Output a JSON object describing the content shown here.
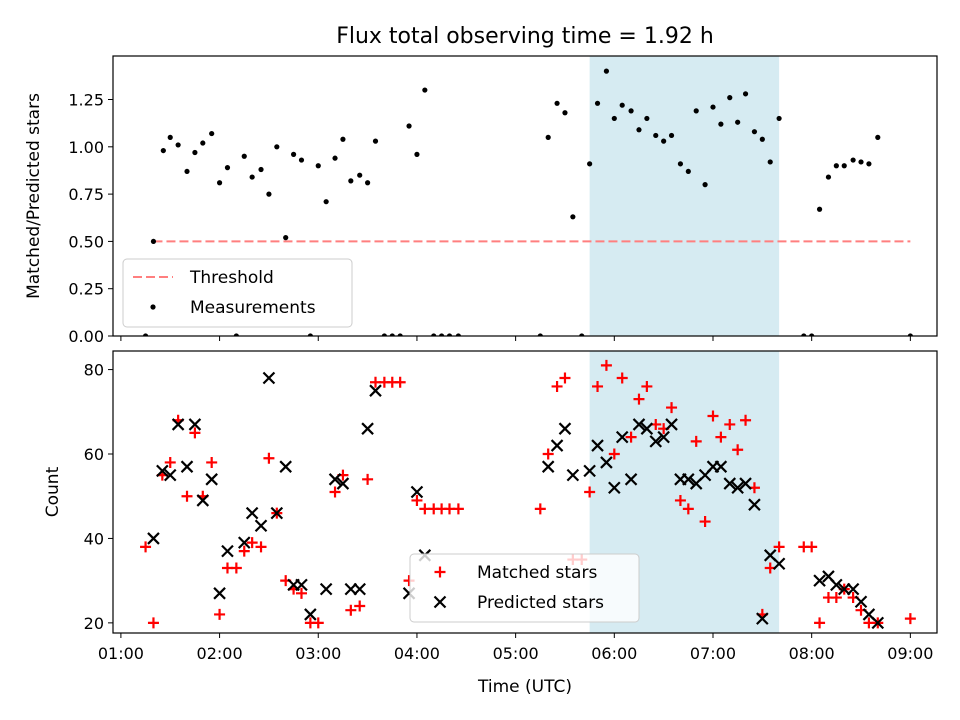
{
  "figure": {
    "title": "Flux total observing time = 1.92 h",
    "xlabel": "Time (UTC)",
    "x_ticks": [
      "01:00",
      "02:00",
      "03:00",
      "04:00",
      "05:00",
      "06:00",
      "07:00",
      "08:00",
      "09:00"
    ],
    "highlight_color": "#add8e6"
  },
  "chart_data": [
    {
      "type": "scatter",
      "ylabel": "Matched/Predicted stars",
      "x_unit": "hours UTC",
      "xlim": [
        0.92,
        9.27
      ],
      "ylim": [
        0,
        1.48
      ],
      "y_ticks": [
        "0.00",
        "0.25",
        "0.50",
        "0.75",
        "1.00",
        "1.25"
      ],
      "grid": false,
      "legend_position": "lower-left",
      "highlight_span": [
        5.75,
        7.67
      ],
      "threshold": {
        "name": "Threshold",
        "x": [
          1.33,
          9.0
        ],
        "value": 0.5,
        "color": "#ff7f7f",
        "style": "dashed"
      },
      "series": [
        {
          "name": "Measurements",
          "color": "#000000",
          "marker": "dot",
          "points": [
            [
              1.25,
              0
            ],
            [
              1.33,
              0.5
            ],
            [
              1.43,
              0.98
            ],
            [
              1.5,
              1.05
            ],
            [
              1.58,
              1.01
            ],
            [
              1.67,
              0.87
            ],
            [
              1.75,
              0.97
            ],
            [
              1.83,
              1.02
            ],
            [
              1.92,
              1.07
            ],
            [
              2.0,
              0.81
            ],
            [
              2.08,
              0.89
            ],
            [
              2.17,
              0
            ],
            [
              2.25,
              0.95
            ],
            [
              2.33,
              0.84
            ],
            [
              2.42,
              0.88
            ],
            [
              2.5,
              0.75
            ],
            [
              2.58,
              1.0
            ],
            [
              2.67,
              0.52
            ],
            [
              2.75,
              0.96
            ],
            [
              2.83,
              0.93
            ],
            [
              2.92,
              0
            ],
            [
              3.0,
              0.9
            ],
            [
              3.08,
              0.71
            ],
            [
              3.17,
              0.94
            ],
            [
              3.25,
              1.04
            ],
            [
              3.33,
              0.82
            ],
            [
              3.42,
              0.85
            ],
            [
              3.5,
              0.81
            ],
            [
              3.58,
              1.03
            ],
            [
              3.67,
              0
            ],
            [
              3.75,
              0
            ],
            [
              3.83,
              0
            ],
            [
              3.92,
              1.11
            ],
            [
              4.0,
              0.96
            ],
            [
              4.08,
              1.3
            ],
            [
              4.17,
              0
            ],
            [
              4.25,
              0
            ],
            [
              4.33,
              0
            ],
            [
              4.42,
              0
            ],
            [
              5.25,
              0
            ],
            [
              5.33,
              1.05
            ],
            [
              5.42,
              1.23
            ],
            [
              5.5,
              1.18
            ],
            [
              5.58,
              0.63
            ],
            [
              5.67,
              0
            ],
            [
              5.75,
              0.91
            ],
            [
              5.83,
              1.23
            ],
            [
              5.92,
              1.4
            ],
            [
              6.0,
              1.15
            ],
            [
              6.08,
              1.22
            ],
            [
              6.17,
              1.19
            ],
            [
              6.25,
              1.09
            ],
            [
              6.33,
              1.15
            ],
            [
              6.42,
              1.06
            ],
            [
              6.5,
              1.03
            ],
            [
              6.58,
              1.06
            ],
            [
              6.67,
              0.91
            ],
            [
              6.75,
              0.87
            ],
            [
              6.83,
              1.19
            ],
            [
              6.92,
              0.8
            ],
            [
              7.0,
              1.21
            ],
            [
              7.08,
              1.12
            ],
            [
              7.17,
              1.26
            ],
            [
              7.25,
              1.13
            ],
            [
              7.33,
              1.28
            ],
            [
              7.42,
              1.08
            ],
            [
              7.5,
              1.04
            ],
            [
              7.58,
              0.92
            ],
            [
              7.67,
              1.15
            ],
            [
              7.92,
              0
            ],
            [
              8.0,
              0
            ],
            [
              8.08,
              0.67
            ],
            [
              8.17,
              0.84
            ],
            [
              8.25,
              0.9
            ],
            [
              8.33,
              0.9
            ],
            [
              8.42,
              0.93
            ],
            [
              8.5,
              0.92
            ],
            [
              8.58,
              0.91
            ],
            [
              8.67,
              1.05
            ],
            [
              9.0,
              0
            ]
          ]
        }
      ]
    },
    {
      "type": "scatter",
      "ylabel": "Count",
      "x_unit": "hours UTC",
      "xlim": [
        0.92,
        9.27
      ],
      "ylim": [
        17.6,
        84.4
      ],
      "y_ticks": [
        "20",
        "40",
        "60",
        "80"
      ],
      "grid": false,
      "legend_position": "lower-center",
      "highlight_span": [
        5.75,
        7.67
      ],
      "series": [
        {
          "name": "Matched stars",
          "color": "#ff0000",
          "marker": "plus",
          "points": [
            [
              1.25,
              38
            ],
            [
              1.33,
              20
            ],
            [
              1.42,
              55
            ],
            [
              1.5,
              58
            ],
            [
              1.58,
              68
            ],
            [
              1.67,
              50
            ],
            [
              1.75,
              65
            ],
            [
              1.83,
              50
            ],
            [
              1.92,
              58
            ],
            [
              2.0,
              22
            ],
            [
              2.08,
              33
            ],
            [
              2.17,
              33
            ],
            [
              2.25,
              37
            ],
            [
              2.33,
              39
            ],
            [
              2.42,
              38
            ],
            [
              2.5,
              59
            ],
            [
              2.58,
              46
            ],
            [
              2.67,
              30
            ],
            [
              2.75,
              28
            ],
            [
              2.83,
              27
            ],
            [
              2.92,
              20
            ],
            [
              3.0,
              20
            ],
            [
              3.17,
              51
            ],
            [
              3.25,
              55
            ],
            [
              3.33,
              23
            ],
            [
              3.42,
              24
            ],
            [
              3.5,
              54
            ],
            [
              3.58,
              77
            ],
            [
              3.67,
              77
            ],
            [
              3.75,
              77
            ],
            [
              3.83,
              77
            ],
            [
              3.92,
              30
            ],
            [
              4.0,
              49
            ],
            [
              4.08,
              47
            ],
            [
              4.17,
              47
            ],
            [
              4.25,
              47
            ],
            [
              4.33,
              47
            ],
            [
              4.42,
              47
            ],
            [
              5.25,
              47
            ],
            [
              5.33,
              60
            ],
            [
              5.42,
              76
            ],
            [
              5.5,
              78
            ],
            [
              5.58,
              35
            ],
            [
              5.67,
              35
            ],
            [
              5.75,
              51
            ],
            [
              5.83,
              76
            ],
            [
              5.92,
              81
            ],
            [
              6.0,
              60
            ],
            [
              6.08,
              78
            ],
            [
              6.17,
              64
            ],
            [
              6.25,
              73
            ],
            [
              6.33,
              76
            ],
            [
              6.42,
              67
            ],
            [
              6.5,
              66
            ],
            [
              6.58,
              71
            ],
            [
              6.67,
              49
            ],
            [
              6.75,
              47
            ],
            [
              6.83,
              63
            ],
            [
              6.92,
              44
            ],
            [
              7.0,
              69
            ],
            [
              7.08,
              64
            ],
            [
              7.17,
              67
            ],
            [
              7.25,
              61
            ],
            [
              7.33,
              68
            ],
            [
              7.42,
              52
            ],
            [
              7.5,
              22
            ],
            [
              7.58,
              33
            ],
            [
              7.67,
              38
            ],
            [
              7.92,
              38
            ],
            [
              8.0,
              38
            ],
            [
              8.08,
              20
            ],
            [
              8.17,
              26
            ],
            [
              8.25,
              26
            ],
            [
              8.33,
              28
            ],
            [
              8.42,
              26
            ],
            [
              8.5,
              23
            ],
            [
              8.58,
              20
            ],
            [
              8.67,
              20
            ],
            [
              9.0,
              21
            ]
          ]
        },
        {
          "name": "Predicted stars",
          "color": "#000000",
          "marker": "x",
          "points": [
            [
              1.33,
              40
            ],
            [
              1.42,
              56
            ],
            [
              1.5,
              55
            ],
            [
              1.58,
              67
            ],
            [
              1.67,
              57
            ],
            [
              1.75,
              67
            ],
            [
              1.83,
              49
            ],
            [
              1.92,
              54
            ],
            [
              2.0,
              27
            ],
            [
              2.08,
              37
            ],
            [
              2.25,
              39
            ],
            [
              2.33,
              46
            ],
            [
              2.42,
              43
            ],
            [
              2.5,
              78
            ],
            [
              2.58,
              46
            ],
            [
              2.67,
              57
            ],
            [
              2.75,
              29
            ],
            [
              2.83,
              29
            ],
            [
              2.92,
              22
            ],
            [
              3.08,
              28
            ],
            [
              3.17,
              54
            ],
            [
              3.25,
              53
            ],
            [
              3.33,
              28
            ],
            [
              3.42,
              28
            ],
            [
              3.5,
              66
            ],
            [
              3.58,
              75
            ],
            [
              3.92,
              27
            ],
            [
              4.0,
              51
            ],
            [
              4.08,
              36
            ],
            [
              5.33,
              57
            ],
            [
              5.42,
              62
            ],
            [
              5.5,
              66
            ],
            [
              5.58,
              55
            ],
            [
              5.75,
              56
            ],
            [
              5.83,
              62
            ],
            [
              5.92,
              58
            ],
            [
              6.0,
              52
            ],
            [
              6.08,
              64
            ],
            [
              6.17,
              54
            ],
            [
              6.25,
              67
            ],
            [
              6.33,
              66
            ],
            [
              6.42,
              63
            ],
            [
              6.5,
              64
            ],
            [
              6.58,
              67
            ],
            [
              6.67,
              54
            ],
            [
              6.75,
              54
            ],
            [
              6.83,
              53
            ],
            [
              6.92,
              55
            ],
            [
              7.0,
              57
            ],
            [
              7.08,
              57
            ],
            [
              7.17,
              53
            ],
            [
              7.25,
              52
            ],
            [
              7.33,
              53
            ],
            [
              7.42,
              48
            ],
            [
              7.5,
              21
            ],
            [
              7.58,
              36
            ],
            [
              7.67,
              34
            ],
            [
              8.08,
              30
            ],
            [
              8.17,
              31
            ],
            [
              8.25,
              29
            ],
            [
              8.33,
              28
            ],
            [
              8.42,
              28
            ],
            [
              8.5,
              25
            ],
            [
              8.58,
              22
            ],
            [
              8.67,
              20
            ]
          ]
        }
      ]
    }
  ]
}
